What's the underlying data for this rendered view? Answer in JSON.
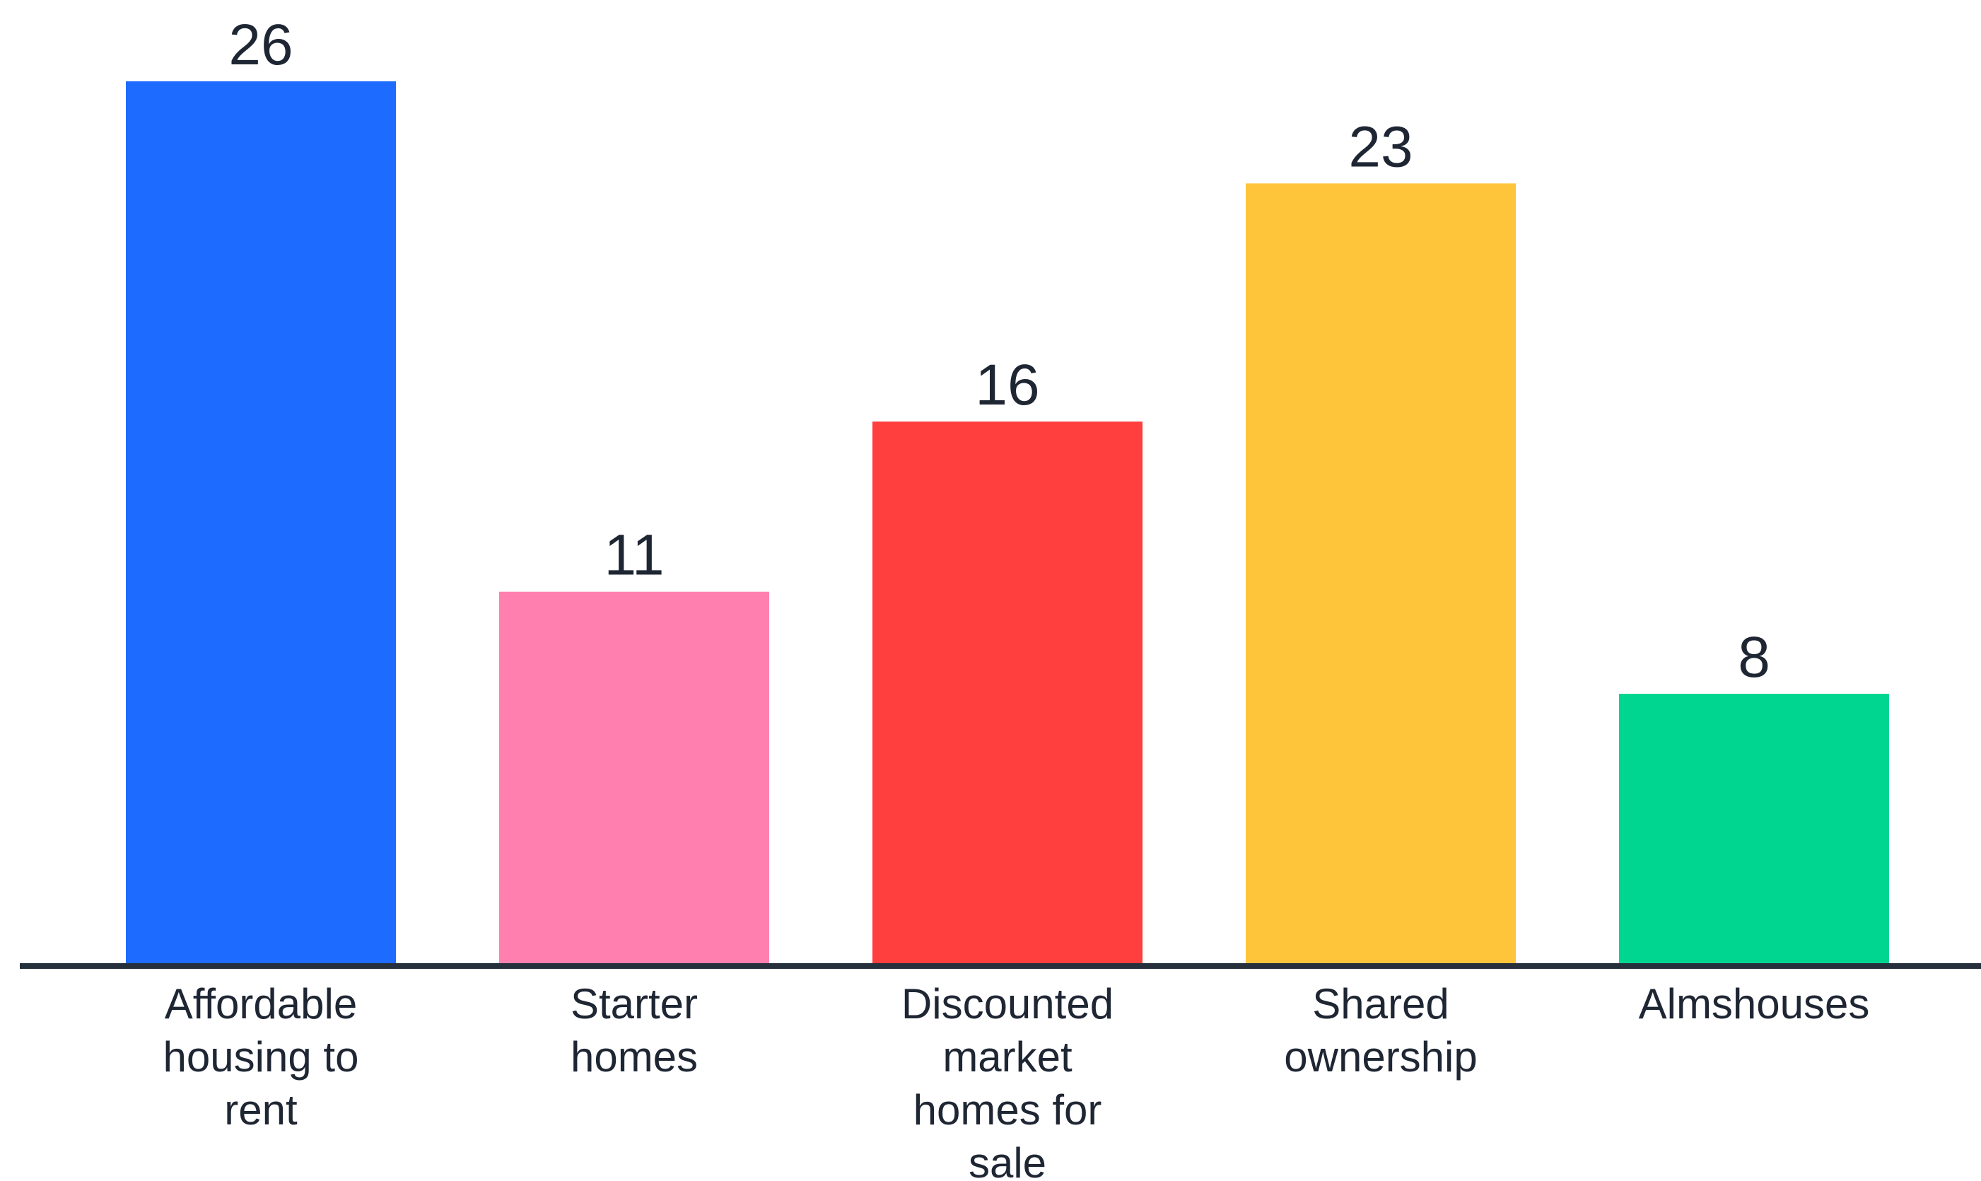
{
  "chart_data": {
    "type": "bar",
    "categories": [
      [
        "Affordable",
        "housing to",
        "rent"
      ],
      [
        "Starter",
        "homes"
      ],
      [
        "Discounted",
        "market",
        "homes for",
        "sale"
      ],
      [
        "Shared",
        "ownership"
      ],
      [
        "Almshouses"
      ]
    ],
    "values": [
      26,
      11,
      16,
      23,
      8
    ],
    "data_labels": [
      "26",
      "11",
      "16",
      "23",
      "8"
    ],
    "colors": [
      "#1E6BFF",
      "#FF80AE",
      "#FF3E3E",
      "#FFC53A",
      "#00D68F"
    ],
    "axis_color": "#26303C",
    "ylim": [
      0,
      26
    ],
    "grid": false,
    "legend": "none"
  }
}
